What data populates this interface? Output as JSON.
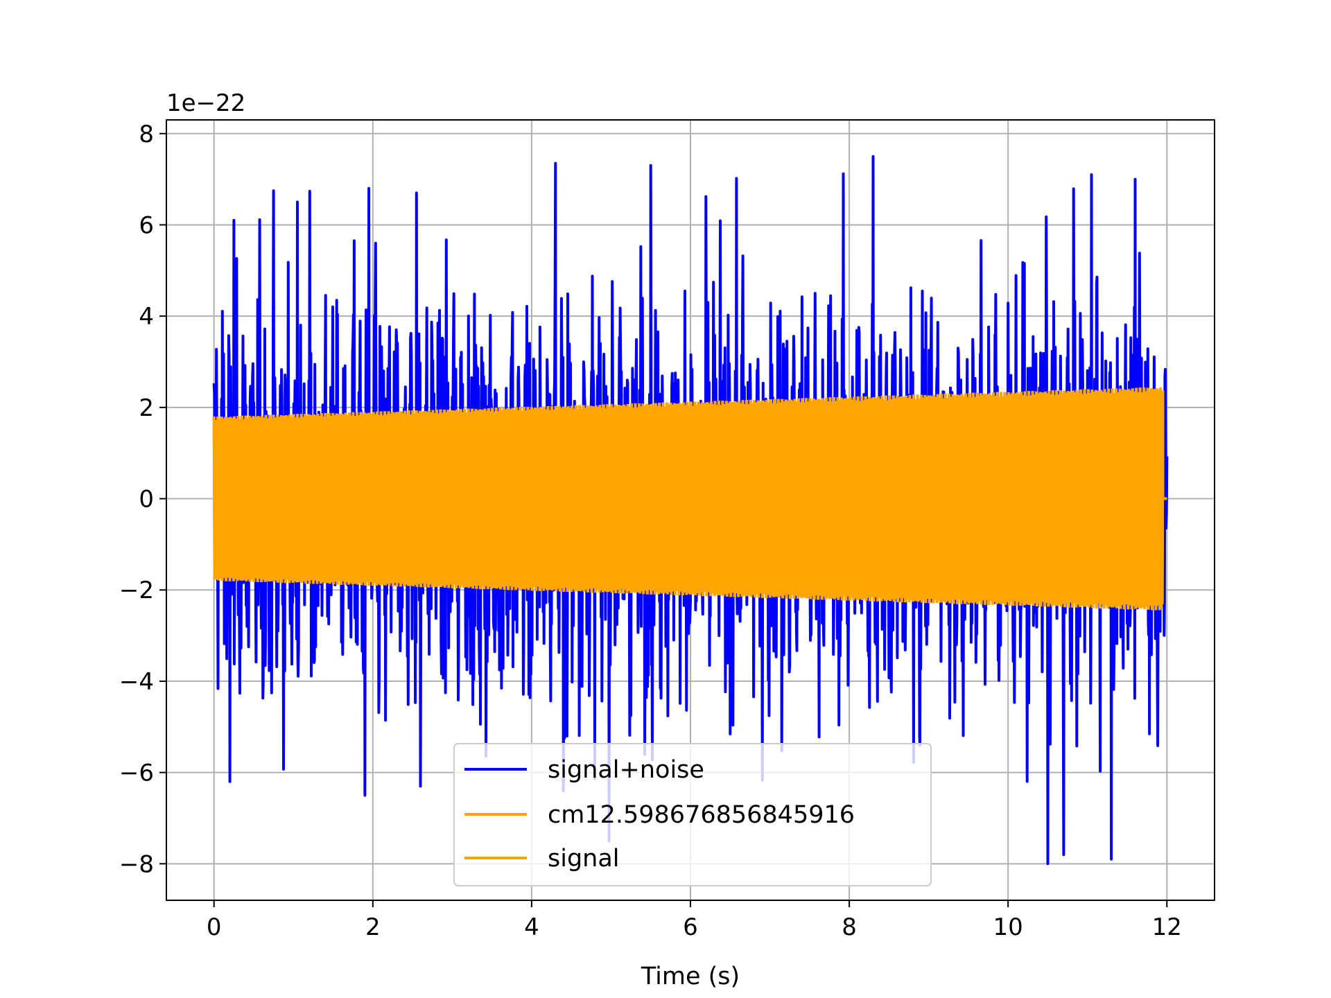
{
  "chart_data": {
    "type": "line",
    "title": "",
    "xlabel": "Time (s)",
    "ylabel": "",
    "y_scale_label": "1e−22",
    "y_scale_factor": 1e-22,
    "xlim": [
      -0.6,
      12.6
    ],
    "ylim": [
      -8.8,
      8.3
    ],
    "x_ticks": [
      0,
      2,
      4,
      6,
      8,
      10,
      12
    ],
    "x_tick_labels": [
      "0",
      "2",
      "4",
      "6",
      "8",
      "10",
      "12"
    ],
    "y_ticks": [
      -8,
      -6,
      -4,
      -2,
      0,
      2,
      4,
      6,
      8
    ],
    "y_tick_labels": [
      "−8",
      "−6",
      "−4",
      "−2",
      "0",
      "2",
      "4",
      "6",
      "8"
    ],
    "grid": true,
    "legend_position": "bottom-center",
    "series": [
      {
        "name": "signal+noise",
        "color": "#0000ff",
        "x_range": [
          0,
          12
        ],
        "description_envelope": "noise dominated, approx between -8 and 7.5",
        "notable_peaks": [
          {
            "x": 0.25,
            "y": 6.1
          },
          {
            "x": 1.05,
            "y": 6.5
          },
          {
            "x": 1.95,
            "y": 6.8
          },
          {
            "x": 2.55,
            "y": 6.7
          },
          {
            "x": 4.3,
            "y": 7.35
          },
          {
            "x": 5.5,
            "y": 7.3
          },
          {
            "x": 8.3,
            "y": 7.5
          },
          {
            "x": 11.05,
            "y": 7.1
          },
          {
            "x": 11.6,
            "y": 7.0
          }
        ],
        "notable_troughs": [
          {
            "x": 0.2,
            "y": -6.2
          },
          {
            "x": 1.9,
            "y": -6.5
          },
          {
            "x": 2.6,
            "y": -6.3
          },
          {
            "x": 4.4,
            "y": -6.4
          },
          {
            "x": 10.5,
            "y": -8.0
          },
          {
            "x": 11.3,
            "y": -7.9
          },
          {
            "x": 10.7,
            "y": -7.8
          }
        ]
      },
      {
        "name": "cm12.598676856845916",
        "color": "#ffa500",
        "x_range": [
          0,
          11.95
        ],
        "amplitude_start": 1.8,
        "amplitude_end": 2.45
      },
      {
        "name": "signal",
        "color": "#ffa500",
        "x_range": [
          0,
          11.95
        ],
        "amplitude_start": 1.8,
        "amplitude_end": 2.45
      }
    ]
  }
}
